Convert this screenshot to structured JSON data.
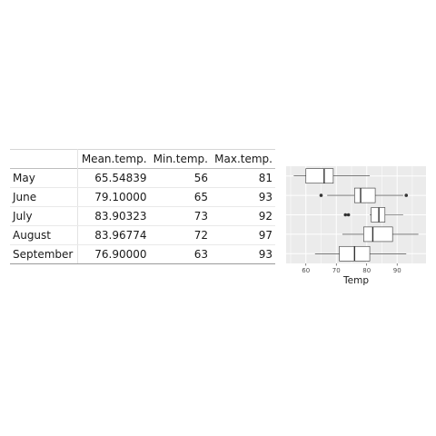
{
  "table": {
    "columns": [
      "",
      "Mean.temp.",
      "Min.temp.",
      "Max.temp."
    ],
    "rows": [
      {
        "label": "May",
        "mean": "65.54839",
        "min": "56",
        "max": "81"
      },
      {
        "label": "June",
        "mean": "79.10000",
        "min": "65",
        "max": "93"
      },
      {
        "label": "July",
        "mean": "83.90323",
        "min": "73",
        "max": "92"
      },
      {
        "label": "August",
        "mean": "83.96774",
        "min": "72",
        "max": "97"
      },
      {
        "label": "September",
        "mean": "76.90000",
        "min": "63",
        "max": "93"
      }
    ]
  },
  "chart_data": {
    "type": "boxplot",
    "xlabel": "Temp",
    "ylabel": "",
    "xlim": [
      53.5,
      99.5
    ],
    "xticks": [
      60,
      70,
      80,
      90
    ],
    "grid": true,
    "panel_background": "#ebebeb",
    "grid_color": "#ffffff",
    "box_fill": "#ffffff",
    "line_color": "#333333",
    "series": [
      {
        "lower_whisker": 56,
        "q1": 60,
        "median": 66,
        "q3": 69,
        "upper_whisker": 81,
        "outliers": []
      },
      {
        "lower_whisker": 67,
        "q1": 76,
        "median": 78,
        "q3": 82.8,
        "upper_whisker": 92,
        "outliers": [
          65,
          93
        ]
      },
      {
        "lower_whisker": 81,
        "q1": 81.5,
        "median": 84,
        "q3": 86,
        "upper_whisker": 92,
        "outliers": [
          73,
          74
        ]
      },
      {
        "lower_whisker": 72,
        "q1": 79,
        "median": 82,
        "q3": 88.5,
        "upper_whisker": 97,
        "outliers": []
      },
      {
        "lower_whisker": 63,
        "q1": 71,
        "median": 76,
        "q3": 81,
        "upper_whisker": 93,
        "outliers": []
      }
    ]
  }
}
